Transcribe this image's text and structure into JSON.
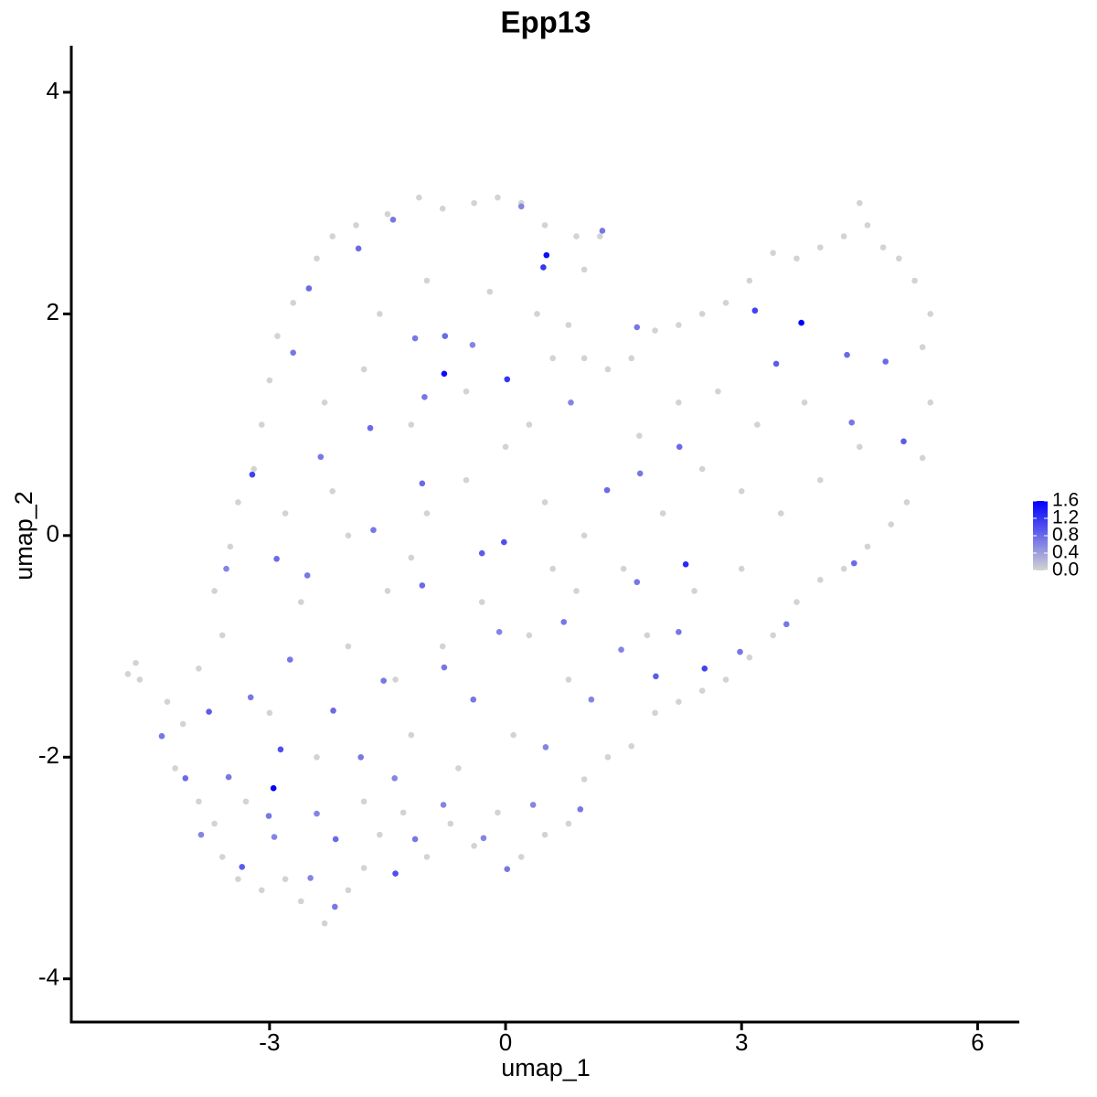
{
  "chart_data": {
    "type": "scatter",
    "title": "Epp13",
    "x_label": "umap_1",
    "y_label": "umap_2",
    "xlim": [
      -5.52,
      6.53
    ],
    "ylim": [
      -4.39,
      4.42
    ],
    "xticks": [
      -3,
      0,
      3,
      6
    ],
    "yticks": [
      -4,
      -2,
      0,
      2,
      4
    ],
    "grid": false,
    "color_low": "#d3d3d3",
    "color_high": "#0000ff",
    "clim": [
      0,
      1.6
    ],
    "colorbar_ticks": [
      {
        "value": 0,
        "label": "0.0"
      },
      0.4,
      0.8,
      1.2,
      1.6
    ],
    "x": [
      -4.8,
      -4.7,
      -4.65,
      -4.3,
      -4.1,
      -4.2,
      -3.9,
      -3.7,
      -3.6,
      -3.4,
      -3.1,
      -2.8,
      -2.6,
      -2.3,
      -2.0,
      -1.8,
      -1.6,
      -1.3,
      -1.0,
      -0.7,
      -0.4,
      -0.1,
      0.2,
      0.5,
      0.8,
      1.0,
      1.3,
      1.6,
      1.9,
      2.2,
      2.5,
      2.8,
      3.1,
      3.4,
      3.7,
      4.0,
      4.3,
      4.6,
      4.9,
      5.1,
      5.3,
      5.4,
      5.3,
      5.4,
      5.2,
      5.0,
      4.8,
      4.6,
      4.5,
      4.3,
      4.0,
      3.7,
      3.4,
      3.1,
      2.8,
      2.5,
      2.2,
      1.9,
      1.6,
      1.3,
      1.0,
      0.8,
      1.0,
      1.2,
      0.9,
      0.5,
      0.2,
      -0.1,
      -0.4,
      -0.8,
      -1.1,
      -1.5,
      -1.9,
      -2.2,
      -2.4,
      -2.7,
      -2.9,
      -3.0,
      -3.1,
      -3.2,
      -3.4,
      -3.5,
      -3.7,
      -3.6,
      -3.9,
      -2.0,
      -1.5,
      -1.0,
      -0.5,
      0.0,
      0.5,
      1.0,
      1.5,
      2.0,
      2.5,
      3.0,
      3.5,
      4.0,
      4.5,
      3.8,
      3.2,
      2.7,
      2.2,
      1.7,
      0.3,
      -0.5,
      -1.2,
      -1.8,
      -2.3,
      -2.6,
      -2.0,
      -1.4,
      -0.8,
      -0.3,
      0.3,
      0.8,
      0.1,
      -0.6,
      -1.2,
      -2.4,
      -3.0,
      -3.3,
      -1.8,
      0.9,
      1.8,
      2.4,
      3.0,
      -0.2,
      -1.0,
      -1.6,
      0.4,
      0.6,
      -2.8,
      -2.2,
      -1.2,
      0.6,
      0.52,
      -0.78,
      0.02,
      3.76,
      3.17,
      -2.95,
      -3.22,
      -2.86,
      2.29,
      2.53,
      -0.02,
      0.48,
      -1.4,
      3.44,
      -3.35,
      -2.16,
      -1.87,
      1.29,
      1.71,
      4.83,
      5.06,
      4.43,
      1.91,
      2.98,
      3.57,
      -3.77,
      -4.37,
      -4.07,
      -1.15,
      0.02,
      0.95,
      0.51,
      -0.41,
      -1.06,
      -1.72,
      -2.35,
      -2.7,
      -2.5,
      -1.43,
      0.2,
      1.23,
      1.67,
      0.83,
      2.21,
      4.4,
      4.34,
      -1.68,
      -2.52,
      -2.91,
      -3.55,
      -1.06,
      -0.3,
      -0.08,
      0.74,
      1.67,
      1.47,
      2.2,
      1.09,
      -0.78,
      -1.55,
      -2.19,
      -2.74,
      -3.24,
      -3.52,
      -3.01,
      -2.4,
      -1.84,
      -1.41,
      -0.79,
      -0.28,
      0.35,
      -2.17,
      -2.48,
      -3.87,
      -0.77,
      -1.15,
      -1.03,
      -0.42,
      -2.94
    ],
    "y": [
      -1.25,
      -1.15,
      -1.3,
      -1.5,
      -1.7,
      -2.1,
      -2.4,
      -2.6,
      -2.9,
      -3.1,
      -3.2,
      -3.1,
      -3.3,
      -3.5,
      -3.2,
      -3.0,
      -2.7,
      -2.5,
      -2.9,
      -2.6,
      -2.8,
      -2.5,
      -2.9,
      -2.7,
      -2.6,
      -2.2,
      -2.0,
      -1.9,
      -1.6,
      -1.5,
      -1.4,
      -1.3,
      -1.1,
      -0.9,
      -0.6,
      -0.4,
      -0.3,
      -0.1,
      0.1,
      0.3,
      0.7,
      1.2,
      1.7,
      2.0,
      2.3,
      2.5,
      2.6,
      2.8,
      3.0,
      2.7,
      2.6,
      2.5,
      2.55,
      2.3,
      2.1,
      2.0,
      1.9,
      1.85,
      1.6,
      1.5,
      1.6,
      1.9,
      2.4,
      2.7,
      2.7,
      2.8,
      3.0,
      3.05,
      3.0,
      2.95,
      3.05,
      2.9,
      2.8,
      2.7,
      2.5,
      2.1,
      1.8,
      1.4,
      1.0,
      0.6,
      0.3,
      -0.1,
      -0.5,
      -0.9,
      -1.2,
      0.0,
      -0.5,
      0.2,
      0.5,
      0.8,
      0.3,
      0.0,
      -0.3,
      0.2,
      0.6,
      0.4,
      0.2,
      0.5,
      0.8,
      1.2,
      1.0,
      1.3,
      1.2,
      0.9,
      1.0,
      1.3,
      1.0,
      1.5,
      1.2,
      -0.6,
      -1.0,
      -1.3,
      -1.0,
      -0.6,
      -0.9,
      -1.3,
      -1.8,
      -2.1,
      -1.8,
      -2.0,
      -1.6,
      -2.4,
      -2.4,
      -0.5,
      -0.9,
      -0.5,
      -0.3,
      2.2,
      2.3,
      2.0,
      2.0,
      1.6,
      0.2,
      0.4,
      -0.2,
      -0.3,
      2.53,
      1.46,
      1.41,
      1.92,
      2.03,
      -2.28,
      0.55,
      -1.93,
      -0.26,
      -1.2,
      -0.06,
      2.42,
      -3.05,
      1.55,
      -2.99,
      -2.74,
      2.59,
      0.41,
      0.56,
      1.57,
      0.85,
      -0.25,
      -1.27,
      -1.05,
      -0.8,
      -1.59,
      -1.81,
      -2.19,
      -2.74,
      -3.01,
      -2.47,
      -1.91,
      -1.48,
      0.47,
      0.97,
      0.71,
      1.65,
      2.23,
      2.85,
      2.97,
      2.75,
      1.88,
      1.2,
      0.8,
      1.02,
      1.63,
      0.05,
      -0.36,
      -0.21,
      -0.3,
      -0.45,
      -0.16,
      -0.87,
      -0.78,
      -0.42,
      -1.03,
      -0.87,
      -1.48,
      -1.19,
      -1.31,
      -1.58,
      -1.12,
      -1.46,
      -2.18,
      -2.53,
      -2.51,
      -2.0,
      -2.19,
      -2.43,
      -2.73,
      -2.43,
      -3.35,
      -3.09,
      -2.7,
      1.8,
      1.78,
      1.25,
      1.72,
      -2.72
    ],
    "values": [
      0,
      0,
      0,
      0,
      0,
      0,
      0,
      0,
      0,
      0,
      0,
      0,
      0,
      0,
      0,
      0,
      0,
      0,
      0,
      0,
      0,
      0,
      0,
      0,
      0,
      0,
      0,
      0,
      0,
      0,
      0,
      0,
      0,
      0,
      0,
      0,
      0,
      0,
      0,
      0,
      0,
      0,
      0,
      0,
      0,
      0,
      0,
      0,
      0,
      0,
      0,
      0,
      0,
      0,
      0,
      0,
      0,
      0,
      0,
      0,
      0,
      0,
      0,
      0,
      0,
      0,
      0,
      0,
      0,
      0,
      0,
      0,
      0,
      0,
      0,
      0,
      0,
      0,
      0,
      0,
      0,
      0,
      0,
      0,
      0,
      0,
      0,
      0,
      0,
      0,
      0,
      0,
      0,
      0,
      0,
      0,
      0,
      0,
      0,
      0,
      0,
      0,
      0,
      0,
      0,
      0,
      0,
      0,
      0,
      0,
      0,
      0,
      0,
      0,
      0,
      0,
      0,
      0,
      0,
      0,
      0,
      0,
      0,
      0,
      0,
      0,
      0,
      0,
      0,
      0,
      0,
      0,
      0,
      0,
      0,
      0,
      1.5,
      1.5,
      1.2,
      1.6,
      1.1,
      1.6,
      1.1,
      1.0,
      1.3,
      1.1,
      1.0,
      1.2,
      1.0,
      0.9,
      0.9,
      0.8,
      0.8,
      0.8,
      0.7,
      0.8,
      0.9,
      0.8,
      0.9,
      0.7,
      0.7,
      0.9,
      0.7,
      0.8,
      0.7,
      0.7,
      0.7,
      0.6,
      0.7,
      0.8,
      0.8,
      0.7,
      0.7,
      0.8,
      0.7,
      0.6,
      0.7,
      0.7,
      0.6,
      0.8,
      0.7,
      0.8,
      0.7,
      0.7,
      0.8,
      0.6,
      0.8,
      0.9,
      0.6,
      0.7,
      0.7,
      0.6,
      0.7,
      0.6,
      0.7,
      0.7,
      0.8,
      0.7,
      0.7,
      0.7,
      0.7,
      0.6,
      0.7,
      0.6,
      0.6,
      0.6,
      0.6,
      0.7,
      0.6,
      0.6,
      0.8,
      0.7,
      0.7,
      0.6,
      0.6
    ]
  }
}
